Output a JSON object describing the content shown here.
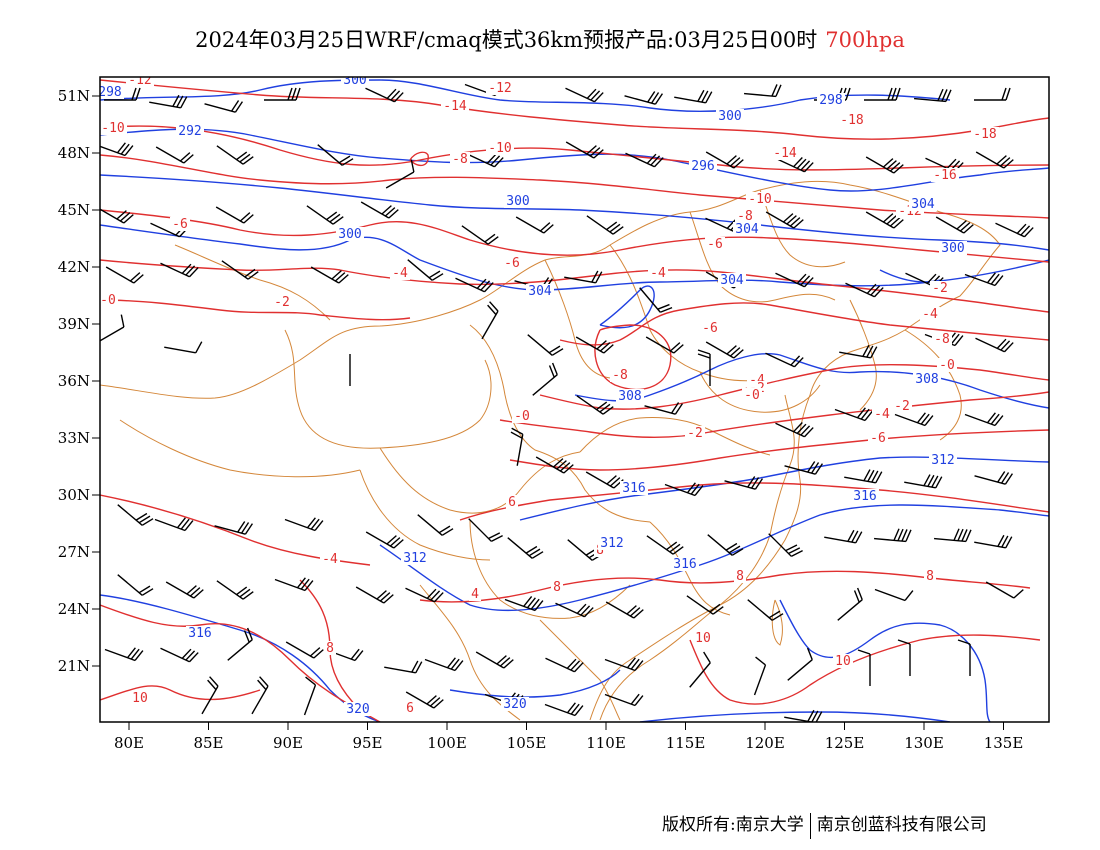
{
  "header": {
    "title": "2024年03月25日WRF/cmaq模式36km预报产品:03月25日00时",
    "level": "700hpa"
  },
  "colors": {
    "temperature": "#e03030",
    "height": "#2040e0",
    "border": "#d4873a",
    "wind": "#000000"
  },
  "axes": {
    "lon_labels": [
      "80E",
      "85E",
      "90E",
      "95E",
      "100E",
      "105E",
      "110E",
      "115E",
      "120E",
      "125E",
      "130E",
      "135E"
    ],
    "lat_labels": [
      "51N",
      "48N",
      "45N",
      "42N",
      "39N",
      "36N",
      "33N",
      "30N",
      "27N",
      "24N",
      "21N"
    ]
  },
  "contour_labels": {
    "temperature": [
      "-12",
      "-14",
      "-12",
      "-10",
      "-8",
      "-10",
      "-14",
      "-18",
      "-18",
      "-16",
      "-8",
      "-10",
      "-12",
      "-6",
      "-6",
      "-4",
      "-6",
      "-4",
      "-2",
      "-0",
      "-4",
      "-6",
      "-8",
      "-4",
      "-2",
      "-0",
      "-0",
      "-2",
      "-0",
      "-2",
      "-8",
      "-4",
      "-2",
      "-6",
      "-4",
      "6",
      "8",
      "8",
      "4",
      "8",
      "8",
      "10",
      "10",
      "10",
      "8",
      "6"
    ],
    "height": [
      "298",
      "300",
      "292",
      "300",
      "298",
      "296",
      "300",
      "300",
      "304",
      "304",
      "304",
      "304",
      "300",
      "308",
      "312",
      "308",
      "316",
      "312",
      "312",
      "316",
      "316",
      "316",
      "320",
      "320"
    ]
  },
  "footer": {
    "copyright_left": "版权所有:南京大学",
    "copyright_right": "南京创蓝科技有限公司"
  }
}
